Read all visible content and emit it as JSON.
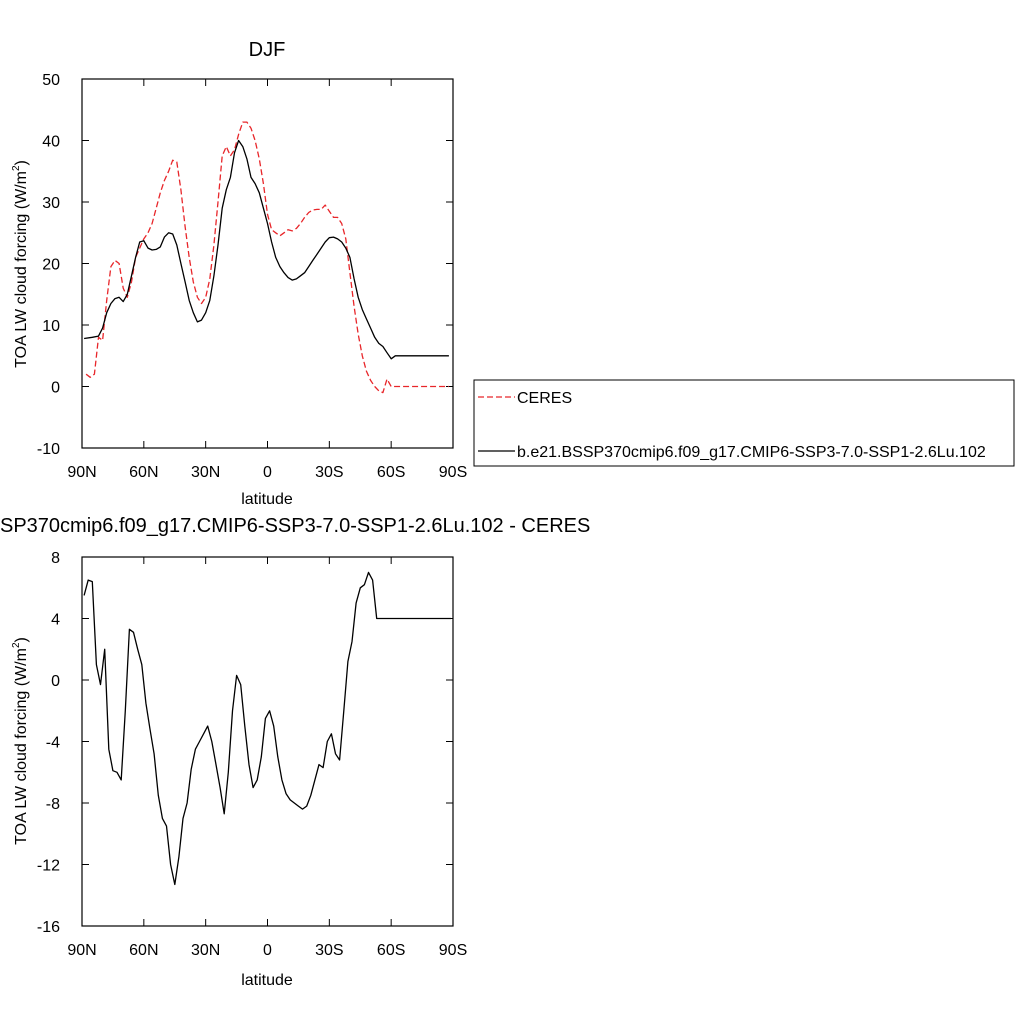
{
  "chart_data": [
    {
      "type": "line",
      "title": "DJF",
      "xlabel": "latitude",
      "ylabel": "TOA LW cloud forcing (W/m",
      "ylabel_sup": "2",
      "ylabel_close": ")",
      "xlim": [
        90,
        -90
      ],
      "ylim": [
        -10,
        50
      ],
      "x_ticks": [
        90,
        60,
        30,
        0,
        -30,
        -60,
        -90
      ],
      "x_tick_labels": [
        "90N",
        "60N",
        "30N",
        "0",
        "30S",
        "60S",
        "90S"
      ],
      "y_ticks": [
        -10,
        0,
        10,
        20,
        30,
        40,
        50
      ],
      "y_tick_labels": [
        "-10",
        "0",
        "10",
        "20",
        "30",
        "40",
        "50"
      ],
      "grid": false,
      "legend_position": "right",
      "series": [
        {
          "name": "CERES",
          "color": "#e8262a",
          "dash": "dashed",
          "x": [
            88,
            86,
            84,
            82,
            80,
            78,
            76,
            74,
            72,
            70,
            68,
            66,
            64,
            62,
            60,
            58,
            56,
            54,
            52,
            50,
            48,
            46,
            44,
            42,
            40,
            38,
            36,
            34,
            32,
            30,
            28,
            26,
            24,
            22,
            20,
            18,
            16,
            14,
            12,
            10,
            8,
            6,
            4,
            2,
            0,
            -2,
            -4,
            -6,
            -8,
            -10,
            -12,
            -14,
            -16,
            -18,
            -20,
            -22,
            -24,
            -26,
            -28,
            -30,
            -32,
            -34,
            -36,
            -38,
            -40,
            -42,
            -44,
            -46,
            -48,
            -50,
            -52,
            -54,
            -56,
            -58,
            -60,
            -62,
            -64,
            -66,
            -68,
            -70,
            -72,
            -74,
            -76,
            -78,
            -80,
            -82,
            -84,
            -86,
            -88
          ],
          "y": [
            2.0,
            1.5,
            2.0,
            8.0,
            7.5,
            14.0,
            19.5,
            20.5,
            20.0,
            16.0,
            14.5,
            17.0,
            21.0,
            22.5,
            24.0,
            25.0,
            26.5,
            29.0,
            31.5,
            33.5,
            35.0,
            36.8,
            36.5,
            32.0,
            26.0,
            21.0,
            17.0,
            14.5,
            13.5,
            14.5,
            17.5,
            23.0,
            30.0,
            37.5,
            39.0,
            37.5,
            38.5,
            41.0,
            43.0,
            43.0,
            42.0,
            40.0,
            37.0,
            33.0,
            28.0,
            25.5,
            25.0,
            24.5,
            25.0,
            25.5,
            25.3,
            25.7,
            26.5,
            27.5,
            28.3,
            28.7,
            28.8,
            28.8,
            29.5,
            28.5,
            27.5,
            27.5,
            26.5,
            24.0,
            18.5,
            13.0,
            8.5,
            5.0,
            2.5,
            1.0,
            0.0,
            -0.7,
            -1.0,
            1.2,
            0.0,
            0.0,
            0.0,
            0.0,
            0.0,
            0.0,
            0.0,
            0.0,
            0.0,
            0.0,
            0.0,
            0.0,
            0.0,
            0.0,
            0.0
          ]
        },
        {
          "name": "b.e21.BSSP370cmip6.f09_g17.CMIP6-SSP3-7.0-SSP1-2.6Lu.102",
          "color": "#000000",
          "dash": "solid",
          "x": [
            89,
            85,
            82,
            80,
            78,
            76,
            74,
            72,
            70,
            68,
            66,
            64,
            62,
            60,
            58,
            56,
            54,
            52,
            50,
            48,
            46,
            44,
            42,
            40,
            38,
            36,
            34,
            32,
            30,
            28,
            26,
            24,
            22,
            20,
            18,
            16,
            14,
            12,
            10,
            8,
            6,
            4,
            2,
            0,
            -2,
            -4,
            -6,
            -8,
            -10,
            -12,
            -14,
            -16,
            -18,
            -20,
            -22,
            -24,
            -26,
            -28,
            -30,
            -32,
            -34,
            -36,
            -38,
            -40,
            -42,
            -44,
            -46,
            -48,
            -50,
            -52,
            -54,
            -56,
            -58,
            -60,
            -62,
            -64,
            -66,
            -68,
            -70,
            -72,
            -74,
            -76,
            -78,
            -80,
            -82,
            -84,
            -86,
            -88
          ],
          "y": [
            7.8,
            8.0,
            8.2,
            9.5,
            12.0,
            13.5,
            14.3,
            14.5,
            13.8,
            15.0,
            18.0,
            21.0,
            23.5,
            23.7,
            22.5,
            22.2,
            22.3,
            22.7,
            24.3,
            25.0,
            24.8,
            23.0,
            20.0,
            17.0,
            14.0,
            12.0,
            10.5,
            10.8,
            12.0,
            14.0,
            18.0,
            23.0,
            29.0,
            32.0,
            34.0,
            38.0,
            40.0,
            39.0,
            37.0,
            34.0,
            33.0,
            31.5,
            29.0,
            26.5,
            23.5,
            21.0,
            19.5,
            18.5,
            17.7,
            17.3,
            17.5,
            18.0,
            18.5,
            19.5,
            20.5,
            21.5,
            22.5,
            23.5,
            24.2,
            24.3,
            24.0,
            23.5,
            22.5,
            21.0,
            17.5,
            14.5,
            12.5,
            11.0,
            9.5,
            8.0,
            7.0,
            6.5,
            5.5,
            4.5,
            5.0,
            5.0,
            5.0,
            5.0,
            5.0,
            5.0,
            5.0,
            5.0,
            5.0,
            5.0,
            5.0,
            5.0,
            5.0,
            5.0
          ]
        }
      ]
    },
    {
      "type": "line",
      "title": "SP370cmip6.f09_g17.CMIP6-SSP3-7.0-SSP1-2.6Lu.102 - CERES",
      "xlabel": "latitude",
      "ylabel": "TOA LW cloud forcing (W/m",
      "ylabel_sup": "2",
      "ylabel_close": ")",
      "xlim": [
        90,
        -90
      ],
      "ylim": [
        -16,
        8
      ],
      "x_ticks": [
        90,
        60,
        30,
        0,
        -30,
        -60,
        -90
      ],
      "x_tick_labels": [
        "90N",
        "60N",
        "30N",
        "0",
        "30S",
        "60S",
        "90S"
      ],
      "y_ticks": [
        -16,
        -12,
        -8,
        -4,
        0,
        4,
        8
      ],
      "y_tick_labels": [
        "-16",
        "-12",
        "-8",
        "-4",
        "0",
        "4",
        "8"
      ],
      "grid": false,
      "series": [
        {
          "name": "",
          "color": "#000000",
          "dash": "solid",
          "x": [
            89,
            87,
            85,
            83,
            81,
            79,
            77,
            75,
            73,
            71,
            69,
            67,
            65,
            63,
            61,
            59,
            57,
            55,
            53,
            51,
            49,
            47,
            45,
            43,
            41,
            39,
            37,
            35,
            33,
            31,
            29,
            27,
            25,
            23,
            21,
            19,
            17,
            15,
            13,
            11,
            9,
            7,
            5,
            3,
            1,
            -1,
            -3,
            -5,
            -7,
            -9,
            -11,
            -13,
            -15,
            -17,
            -19,
            -21,
            -23,
            -25,
            -27,
            -29,
            -31,
            -33,
            -35,
            -37,
            -39,
            -41,
            -43,
            -45,
            -47,
            -49,
            -51,
            -53,
            -55,
            -57,
            -59,
            -61,
            -63,
            -65,
            -67,
            -69,
            -71,
            -73,
            -75,
            -77,
            -79,
            -81,
            -83,
            -85,
            -87,
            -89
          ],
          "y": [
            5.5,
            6.5,
            6.4,
            1.0,
            -0.3,
            2.0,
            -4.5,
            -5.9,
            -6.0,
            -6.5,
            -2.0,
            3.3,
            3.1,
            2.0,
            1.0,
            -1.5,
            -3.2,
            -4.8,
            -7.5,
            -9.0,
            -9.5,
            -12.0,
            -13.3,
            -11.5,
            -9.0,
            -8.0,
            -5.8,
            -4.5,
            -4.0,
            -3.5,
            -3.0,
            -4.0,
            -5.5,
            -7.0,
            -8.7,
            -6.0,
            -2.0,
            0.3,
            -0.3,
            -3.0,
            -5.5,
            -7.0,
            -6.5,
            -5.0,
            -2.5,
            -2.0,
            -3.0,
            -5.0,
            -6.5,
            -7.4,
            -7.8,
            -8.0,
            -8.2,
            -8.4,
            -8.2,
            -7.5,
            -6.5,
            -5.5,
            -5.7,
            -4.0,
            -3.5,
            -4.8,
            -5.2,
            -2.0,
            1.2,
            2.5,
            5.0,
            6.0,
            6.2,
            7.0,
            6.5,
            4.0,
            4.0,
            4.0,
            4.0,
            4.0,
            4.0,
            4.0,
            4.0,
            4.0,
            4.0,
            4.0,
            4.0,
            4.0,
            4.0,
            4.0,
            4.0,
            4.0,
            4.0,
            4.0
          ]
        }
      ]
    }
  ]
}
